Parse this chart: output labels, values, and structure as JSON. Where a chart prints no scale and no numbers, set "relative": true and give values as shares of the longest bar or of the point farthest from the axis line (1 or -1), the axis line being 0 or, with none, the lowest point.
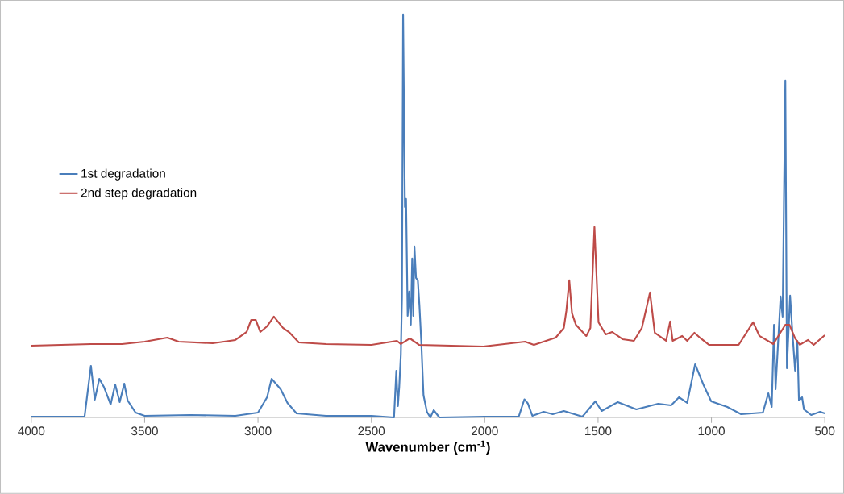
{
  "chart_data": {
    "type": "line",
    "relative": true,
    "xlabel": "Wavenumber (cm$^{-1}$)",
    "xlim": [
      4000,
      500
    ],
    "xticks": [
      4000,
      3500,
      3000,
      2500,
      2000,
      1500,
      1000,
      500
    ],
    "grid": false,
    "legend": "left",
    "marker": "none",
    "line_style": "solid",
    "series": [
      {
        "name": "1st degradation",
        "color": "#4a7ebb",
        "x": [
          4000,
          3765,
          3737,
          3720,
          3700,
          3680,
          3650,
          3630,
          3610,
          3590,
          3575,
          3540,
          3500,
          3300,
          3100,
          3000,
          2960,
          2940,
          2900,
          2870,
          2830,
          2700,
          2500,
          2400,
          2390,
          2383,
          2377,
          2370,
          2365,
          2360,
          2352,
          2347,
          2340,
          2333,
          2326,
          2320,
          2315,
          2310,
          2303,
          2295,
          2288,
          2280,
          2270,
          2255,
          2240,
          2225,
          2200,
          2000,
          1850,
          1825,
          1810,
          1790,
          1740,
          1700,
          1651,
          1569,
          1512,
          1484,
          1413,
          1331,
          1235,
          1178,
          1143,
          1107,
          1072,
          1036,
          1001,
          930,
          869,
          773,
          749,
          734,
          724,
          717,
          695,
          686,
          674,
          667,
          653,
          645,
          631,
          621,
          614,
          600,
          592,
          560,
          521,
          500
        ],
        "values": [
          0.002,
          0.002,
          0.128,
          0.044,
          0.096,
          0.076,
          0.032,
          0.082,
          0.038,
          0.084,
          0.042,
          0.012,
          0.004,
          0.006,
          0.004,
          0.012,
          0.05,
          0.096,
          0.07,
          0.036,
          0.01,
          0.004,
          0.004,
          0,
          0.116,
          0.028,
          0.076,
          0.156,
          0.3,
          1.0,
          0.522,
          0.542,
          0.252,
          0.312,
          0.23,
          0.394,
          0.252,
          0.424,
          0.346,
          0.34,
          0.278,
          0.19,
          0.055,
          0.014,
          0,
          0.018,
          0,
          0.002,
          0.002,
          0.045,
          0.035,
          0.004,
          0.014,
          0.008,
          0.016,
          0.002,
          0.04,
          0.016,
          0.038,
          0.02,
          0.034,
          0.03,
          0.05,
          0.036,
          0.132,
          0.082,
          0.04,
          0.026,
          0.008,
          0.012,
          0.06,
          0.026,
          0.23,
          0.07,
          0.3,
          0.25,
          0.836,
          0.122,
          0.302,
          0.23,
          0.116,
          0.19,
          0.042,
          0.05,
          0.02,
          0.006,
          0.014,
          0.01
        ]
      },
      {
        "name": "2nd step degradation",
        "color": "#be4b48",
        "x": [
          4000,
          3737,
          3600,
          3500,
          3400,
          3350,
          3200,
          3100,
          3050,
          3030,
          3010,
          2990,
          2960,
          2930,
          2890,
          2860,
          2820,
          2700,
          2500,
          2387,
          2370,
          2330,
          2290,
          2006,
          1822,
          1783,
          1687,
          1651,
          1640,
          1627,
          1615,
          1598,
          1552,
          1534,
          1516,
          1498,
          1466,
          1438,
          1392,
          1342,
          1307,
          1271,
          1250,
          1200,
          1182,
          1171,
          1129,
          1107,
          1075,
          1047,
          1011,
          880,
          816,
          788,
          727,
          674,
          656,
          631,
          610,
          574,
          549,
          500
        ],
        "values": [
          0.178,
          0.182,
          0.182,
          0.188,
          0.198,
          0.188,
          0.184,
          0.192,
          0.212,
          0.242,
          0.242,
          0.212,
          0.226,
          0.25,
          0.222,
          0.21,
          0.186,
          0.182,
          0.18,
          0.19,
          0.182,
          0.196,
          0.18,
          0.176,
          0.188,
          0.18,
          0.198,
          0.222,
          0.264,
          0.34,
          0.258,
          0.23,
          0.202,
          0.222,
          0.472,
          0.236,
          0.206,
          0.212,
          0.194,
          0.19,
          0.222,
          0.31,
          0.21,
          0.19,
          0.238,
          0.19,
          0.202,
          0.19,
          0.21,
          0.196,
          0.18,
          0.18,
          0.236,
          0.202,
          0.182,
          0.23,
          0.23,
          0.196,
          0.18,
          0.192,
          0.18,
          0.204
        ]
      }
    ]
  }
}
